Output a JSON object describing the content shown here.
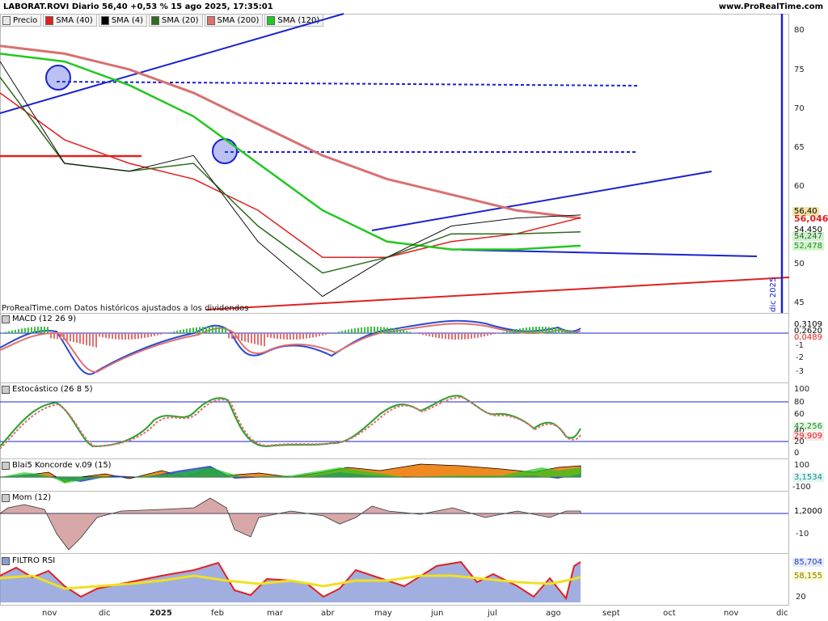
{
  "header": {
    "title": "LABORAT.ROVI Diario 56,40 +0,53 % 15 ago 2025, 17:35:01",
    "site": "www.ProRealTime.com"
  },
  "legend": [
    {
      "label": "Precio",
      "color": "#e8e8e8"
    },
    {
      "label": "SMA (40)",
      "color": "#e02020"
    },
    {
      "label": "SMA (4)",
      "color": "#000000"
    },
    {
      "label": "SMA (20)",
      "color": "#2e6b1e"
    },
    {
      "label": "SMA (200)",
      "color": "#e07070"
    },
    {
      "label": "SMA (120)",
      "color": "#22c81e"
    }
  ],
  "main_chart": {
    "footnote": "ProRealTime.com  Datos históricos ajustados a los dividendos",
    "y_ticks": [
      "80",
      "75",
      "70",
      "65",
      "60",
      "50",
      "45"
    ],
    "badges": [
      {
        "text": "56,40",
        "bg": "#f5e2a0",
        "color": "#000000"
      },
      {
        "text": "56,046",
        "bg": "#ffffff",
        "color": "#e02020"
      },
      {
        "text": "54,450",
        "bg": "#ffffff",
        "color": "#000000"
      },
      {
        "text": "54,247",
        "bg": "#d4f0d0",
        "color": "#1e6b1e"
      },
      {
        "text": "52,478",
        "bg": "#d4f5d0",
        "color": "#1e8b1e"
      }
    ],
    "vertical_label": "dic 2025"
  },
  "macd": {
    "title": "MACD (12 26 9)",
    "y_ticks": [
      "-1",
      "-2",
      "-3"
    ],
    "badges": [
      {
        "text": "0,3109",
        "color": "#000000"
      },
      {
        "text": "0,2620",
        "color": "#000000"
      },
      {
        "text": "0,0489",
        "color": "#e02020"
      }
    ]
  },
  "stoch": {
    "title": "Estocástico (26 8 5)",
    "y_ticks": [
      "100",
      "80",
      "60",
      "40",
      "20",
      "0"
    ],
    "badges": [
      {
        "text": "42,256",
        "color": "#1e8b1e"
      },
      {
        "text": "29,909",
        "color": "#e02020"
      }
    ]
  },
  "koncorde": {
    "title": "Blai5 Koncorde v.09 (15)",
    "y_ticks": [
      "100",
      "-100"
    ],
    "badges": [
      {
        "text": "3,1534",
        "color": "#1e8b8b"
      }
    ]
  },
  "mom": {
    "title": "Mom (12)",
    "y_ticks": [
      "-10"
    ],
    "badges": [
      {
        "text": "1,2000",
        "color": "#000000"
      }
    ]
  },
  "rsi": {
    "title": "FILTRO RSI",
    "y_ticks": [
      "20"
    ],
    "badges": [
      {
        "text": "85,704",
        "color": "#1f3fc0"
      },
      {
        "text": "58,155",
        "color": "#8a7a00"
      }
    ]
  },
  "x_axis": [
    "nov",
    "dic",
    "2025",
    "feb",
    "mar",
    "abr",
    "may",
    "jun",
    "jul",
    "ago",
    "sept",
    "oct",
    "nov",
    "dic"
  ],
  "chart_data": {
    "type": "line",
    "title": "LABORAT.ROVI Diario",
    "x": [
      "nov",
      "dic",
      "2025",
      "feb",
      "mar",
      "abr",
      "may",
      "jun",
      "jul",
      "ago"
    ],
    "series": [
      {
        "name": "Precio",
        "values": [
          76,
          63,
          62,
          64,
          53,
          46,
          51,
          55,
          56,
          56.4
        ]
      },
      {
        "name": "SMA (40)",
        "values": [
          72,
          66,
          63,
          61,
          57,
          51,
          51,
          53,
          54,
          56.046
        ]
      },
      {
        "name": "SMA (20)",
        "values": [
          74,
          63,
          62,
          63,
          55,
          49,
          51,
          54,
          54,
          54.247
        ]
      },
      {
        "name": "SMA (200)",
        "values": [
          78,
          77,
          75,
          72,
          68,
          64,
          61,
          59,
          57,
          56
        ]
      },
      {
        "name": "SMA (120)",
        "values": [
          77,
          76,
          73,
          69,
          63,
          57,
          53,
          52,
          52,
          52.478
        ]
      }
    ],
    "ylim": [
      44,
      82
    ]
  }
}
